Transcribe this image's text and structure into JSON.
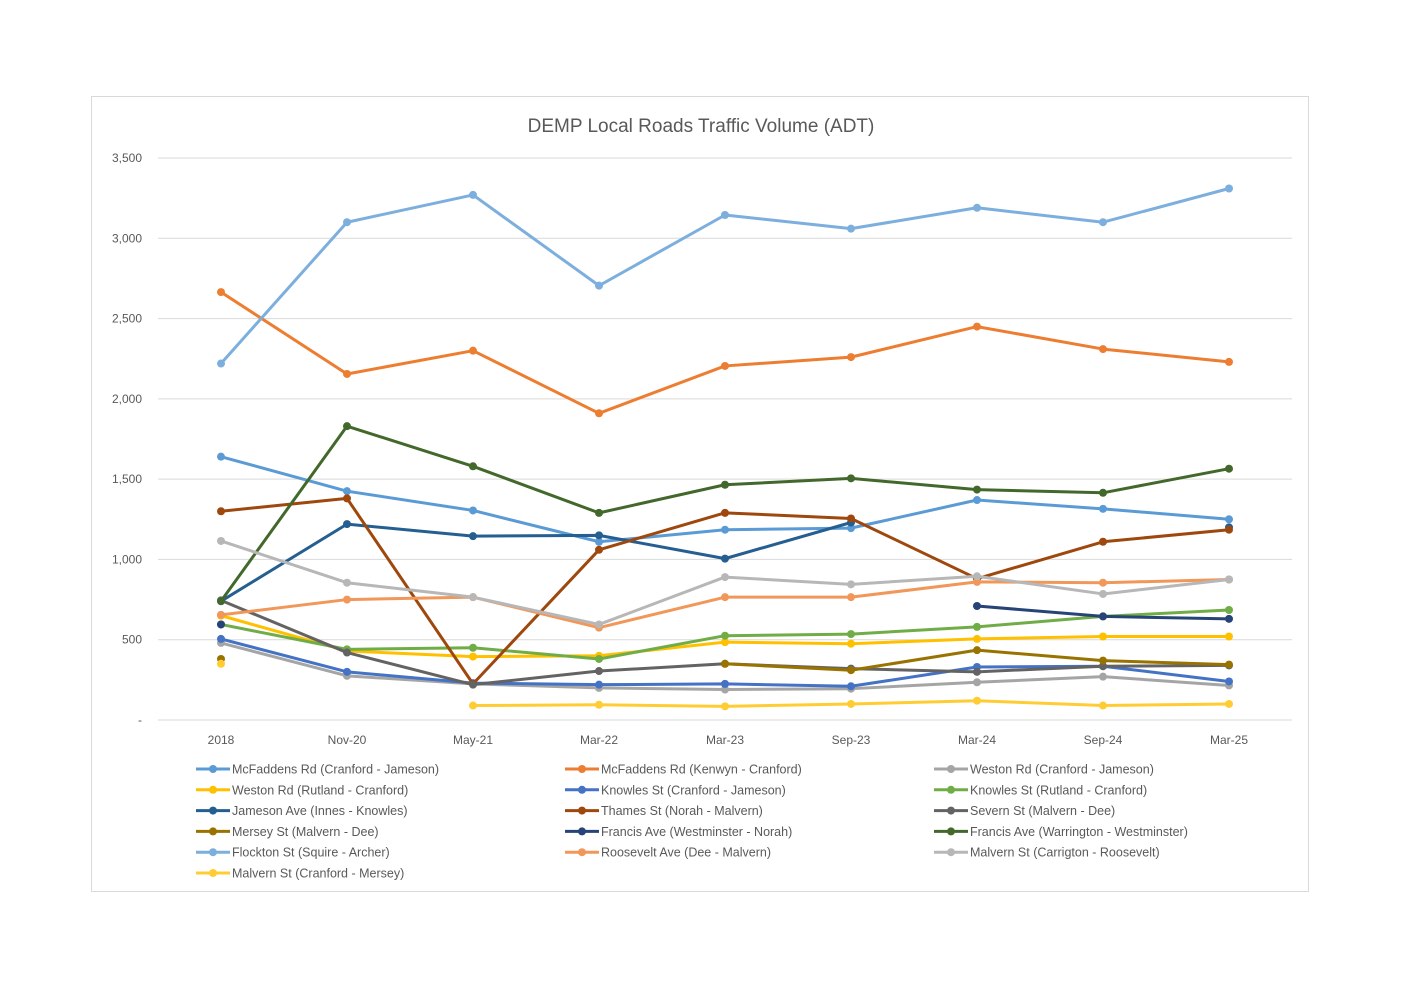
{
  "chart_data": {
    "type": "line",
    "title": "DEMP Local Roads Traffic Volume (ADT)",
    "xlabel": "",
    "ylabel": "",
    "ylim": [
      0,
      3500
    ],
    "ytick_values": [
      0,
      500,
      1000,
      1500,
      2000,
      2500,
      3000,
      3500
    ],
    "ytick_labels": [
      "-",
      "500",
      "1,000",
      "1,500",
      "2,000",
      "2,500",
      "3,000",
      "3,500"
    ],
    "grid": true,
    "legend_position": "bottom",
    "categories": [
      "2018",
      "Nov-20",
      "May-21",
      "Mar-22",
      "Mar-23",
      "Sep-23",
      "Mar-24",
      "Sep-24",
      "Mar-25"
    ],
    "series": [
      {
        "name": "McFaddens Rd (Cranford - Jameson)",
        "color": "#5B9BD5",
        "values": [
          1640,
          1425,
          1305,
          1110,
          1185,
          1195,
          1370,
          1315,
          1250
        ]
      },
      {
        "name": "McFaddens Rd (Kenwyn - Cranford)",
        "color": "#ED7D31",
        "values": [
          2665,
          2155,
          2300,
          1910,
          2205,
          2260,
          2450,
          2310,
          2230
        ]
      },
      {
        "name": "Weston Rd (Cranford - Jameson)",
        "color": "#A5A5A5",
        "values": [
          480,
          275,
          225,
          200,
          190,
          195,
          235,
          270,
          215
        ]
      },
      {
        "name": "Weston Rd (Rutland - Cranford)",
        "color": "#FFC000",
        "values": [
          650,
          430,
          395,
          400,
          485,
          475,
          505,
          520,
          520
        ]
      },
      {
        "name": "Knowles St (Cranford - Jameson)",
        "color": "#4472C4",
        "values": [
          505,
          300,
          230,
          220,
          225,
          210,
          330,
          335,
          240
        ]
      },
      {
        "name": "Knowles St (Rutland - Cranford)",
        "color": "#70AD47",
        "values": [
          595,
          440,
          450,
          380,
          525,
          535,
          580,
          645,
          685
        ]
      },
      {
        "name": "Jameson Ave (Innes - Knowles)",
        "color": "#255E91",
        "values": [
          740,
          1220,
          1145,
          1150,
          1005,
          1230,
          null,
          null,
          1200
        ]
      },
      {
        "name": "Thames St (Norah - Malvern)",
        "color": "#9E480E",
        "values": [
          1300,
          1380,
          225,
          1060,
          1290,
          1255,
          880,
          1110,
          1185
        ]
      },
      {
        "name": "Severn St (Malvern - Dee)",
        "color": "#636363",
        "values": [
          745,
          420,
          220,
          305,
          350,
          320,
          300,
          335,
          340
        ]
      },
      {
        "name": "Mersey St (Malvern - Dee)",
        "color": "#997300",
        "values": [
          380,
          null,
          null,
          null,
          350,
          310,
          435,
          370,
          345
        ]
      },
      {
        "name": "Francis Ave (Westminster - Norah)",
        "color": "#264478",
        "values": [
          595,
          null,
          null,
          null,
          null,
          null,
          710,
          645,
          630
        ]
      },
      {
        "name": "Francis Ave (Warrington - Westminster)",
        "color": "#43682B",
        "values": [
          740,
          1830,
          1580,
          1290,
          1465,
          1505,
          1435,
          1415,
          1565
        ]
      },
      {
        "name": "Flockton St (Squire - Archer)",
        "color": "#7CAFDD",
        "values": [
          2220,
          3100,
          3270,
          2705,
          3145,
          3060,
          3190,
          3100,
          3310
        ]
      },
      {
        "name": "Roosevelt Ave (Dee - Malvern)",
        "color": "#F1975A",
        "values": [
          655,
          750,
          765,
          575,
          765,
          765,
          860,
          855,
          875
        ]
      },
      {
        "name": "Malvern St (Carrigton - Roosevelt)",
        "color": "#B7B7B7",
        "values": [
          1115,
          855,
          765,
          595,
          890,
          845,
          895,
          785,
          875
        ]
      },
      {
        "name": "Malvern St (Cranford - Mersey)",
        "color": "#FFCD33",
        "values": [
          350,
          null,
          90,
          95,
          85,
          100,
          120,
          90,
          100
        ]
      }
    ]
  }
}
